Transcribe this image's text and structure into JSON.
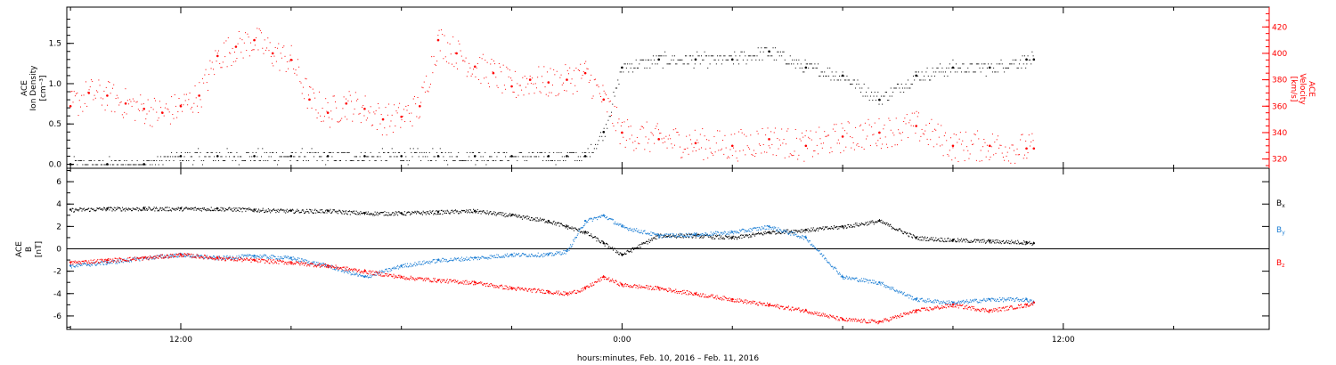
{
  "figure": {
    "xlabel": "hours:minutes, Feb. 10, 2016 – Feb. 11, 2016",
    "x_ticks": [
      {
        "hours": 12,
        "label": "12:00"
      },
      {
        "hours": 24,
        "label": "0:00"
      },
      {
        "hours": 36,
        "label": "12:00"
      }
    ],
    "x_range_hours": [
      8.9,
      41.6
    ]
  },
  "chart_data": [
    {
      "type": "scatter",
      "ylabel_left": [
        "ACE",
        "Ion Density",
        "[cm⁻³]"
      ],
      "ylabel_right": [
        "ACE",
        "Velocity",
        "[km/s]"
      ],
      "ylim_left": [
        -0.05,
        1.95
      ],
      "ylim_right": [
        313,
        435
      ],
      "left_ticks": [
        0.0,
        0.5,
        1.0,
        1.5
      ],
      "left_tick_labels": [
        "0.0",
        "0.5",
        "1.0",
        "1.5"
      ],
      "right_ticks": [
        320,
        340,
        360,
        380,
        400,
        420
      ],
      "right_tick_labels": [
        "320",
        "340",
        "360",
        "380",
        "400",
        "420"
      ],
      "series": [
        {
          "axis": "left",
          "color": "#000000",
          "x_hours": [
            9.0,
            10.0,
            11.0,
            12.0,
            13.0,
            14.0,
            15.0,
            16.0,
            17.0,
            18.0,
            19.0,
            20.0,
            21.0,
            22.0,
            22.5,
            23.0,
            23.5,
            24.0,
            25.0,
            26.0,
            27.0,
            28.0,
            29.0,
            30.0,
            31.0,
            32.0,
            33.0,
            34.0,
            35.0,
            35.2
          ],
          "y": [
            0.0,
            0.0,
            0.0,
            0.1,
            0.1,
            0.1,
            0.1,
            0.1,
            0.1,
            0.1,
            0.1,
            0.1,
            0.1,
            0.1,
            0.1,
            0.1,
            0.4,
            1.2,
            1.3,
            1.3,
            1.3,
            1.4,
            1.2,
            1.1,
            0.8,
            1.1,
            1.2,
            1.2,
            1.3,
            1.3
          ]
        },
        {
          "axis": "right",
          "color": "#ff0000",
          "x_hours": [
            9.0,
            9.5,
            10.0,
            10.5,
            11.0,
            11.5,
            12.0,
            12.5,
            13.0,
            13.5,
            14.0,
            14.5,
            15.0,
            15.5,
            16.0,
            16.5,
            17.0,
            17.5,
            18.0,
            18.5,
            19.0,
            19.5,
            20.0,
            20.5,
            21.0,
            21.5,
            22.0,
            22.5,
            23.0,
            23.5,
            24.0,
            25.0,
            26.0,
            27.0,
            28.0,
            29.0,
            30.0,
            31.0,
            32.0,
            33.0,
            34.0,
            35.0,
            35.2
          ],
          "y": [
            360,
            370,
            368,
            362,
            358,
            355,
            360,
            368,
            398,
            405,
            410,
            400,
            395,
            365,
            355,
            362,
            358,
            350,
            352,
            360,
            410,
            400,
            390,
            385,
            375,
            380,
            378,
            380,
            385,
            365,
            340,
            335,
            332,
            330,
            335,
            330,
            337,
            340,
            345,
            330,
            330,
            328,
            328
          ]
        }
      ]
    },
    {
      "type": "line",
      "ylabel": [
        "ACE",
        "B",
        "[nT]"
      ],
      "ylim": [
        -7.2,
        7.2
      ],
      "y_ticks": [
        -6,
        -4,
        -2,
        0,
        2,
        4,
        6
      ],
      "y_tick_labels": [
        "-6",
        "-4",
        "-2",
        "0",
        "2",
        "4",
        "6"
      ],
      "zero_line": true,
      "series": [
        {
          "name": "B_x",
          "color": "#000000",
          "x_hours": [
            9.0,
            10.0,
            11.0,
            12.0,
            13.0,
            14.0,
            15.0,
            16.0,
            17.0,
            18.0,
            19.0,
            20.0,
            21.0,
            22.0,
            22.5,
            23.0,
            23.5,
            24.0,
            25.0,
            26.0,
            27.0,
            28.0,
            29.0,
            30.0,
            31.0,
            32.0,
            33.0,
            34.0,
            35.0,
            35.2
          ],
          "y": [
            3.5,
            3.6,
            3.6,
            3.6,
            3.6,
            3.5,
            3.4,
            3.4,
            3.2,
            3.2,
            3.3,
            3.4,
            3.0,
            2.5,
            2.0,
            1.5,
            0.5,
            -0.5,
            1.2,
            1.2,
            1.0,
            1.5,
            1.7,
            2.0,
            2.5,
            1.0,
            0.8,
            0.7,
            0.6,
            0.5
          ]
        },
        {
          "name": "B_y",
          "color": "#1e7fd4",
          "x_hours": [
            9.0,
            10.0,
            11.0,
            12.0,
            13.0,
            14.0,
            15.0,
            16.0,
            17.0,
            18.0,
            19.0,
            20.0,
            21.0,
            22.0,
            22.5,
            23.0,
            23.5,
            24.0,
            25.0,
            26.0,
            27.0,
            28.0,
            29.0,
            30.0,
            31.0,
            32.0,
            33.0,
            34.0,
            35.0,
            35.2
          ],
          "y": [
            -1.5,
            -1.2,
            -0.8,
            -0.5,
            -0.8,
            -0.6,
            -0.8,
            -1.5,
            -2.5,
            -1.5,
            -1.0,
            -0.8,
            -0.5,
            -0.5,
            -0.2,
            2.5,
            3.0,
            2.0,
            1.2,
            1.3,
            1.5,
            2.0,
            1.0,
            -2.5,
            -3.0,
            -4.5,
            -4.8,
            -4.5,
            -4.5,
            -4.8
          ]
        },
        {
          "name": "B_z",
          "color": "#ff0000",
          "x_hours": [
            9.0,
            10.0,
            11.0,
            12.0,
            13.0,
            14.0,
            15.0,
            16.0,
            17.0,
            18.0,
            19.0,
            20.0,
            21.0,
            22.0,
            22.5,
            23.0,
            23.5,
            24.0,
            25.0,
            26.0,
            27.0,
            28.0,
            29.0,
            30.0,
            31.0,
            32.0,
            33.0,
            34.0,
            35.0,
            35.2
          ],
          "y": [
            -1.2,
            -1.0,
            -0.8,
            -0.5,
            -0.8,
            -1.0,
            -1.2,
            -1.5,
            -2.0,
            -2.5,
            -2.8,
            -3.0,
            -3.5,
            -3.8,
            -4.0,
            -3.5,
            -2.5,
            -3.2,
            -3.5,
            -4.0,
            -4.5,
            -5.0,
            -5.5,
            -6.3,
            -6.5,
            -5.5,
            -5.0,
            -5.5,
            -5.0,
            -4.8
          ]
        }
      ]
    }
  ]
}
